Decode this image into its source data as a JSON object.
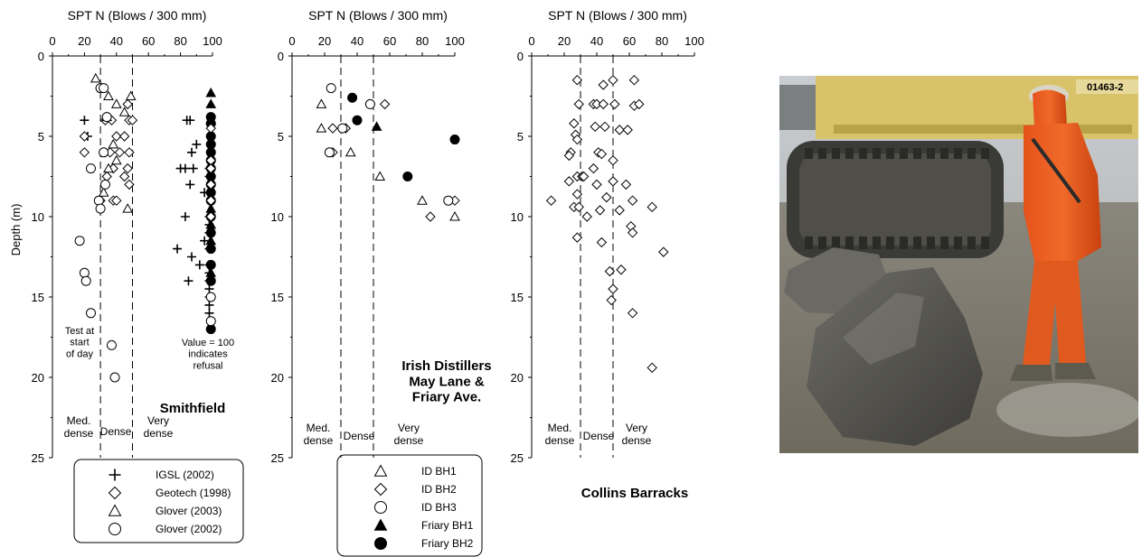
{
  "chart_data": [
    {
      "type": "scatter",
      "title": "Smithfield",
      "xlabel": "SPT N (Blows / 300 mm)",
      "ylabel": "Depth (m)",
      "xlim": [
        0,
        100
      ],
      "ylim": [
        0,
        25
      ],
      "xticks": [
        "0",
        "20",
        "40",
        "60",
        "80",
        "100"
      ],
      "yticks": [
        "0",
        "5",
        "10",
        "15",
        "20",
        "25"
      ],
      "axis_orientation": "x-top, y-inverted",
      "zone_lines_x": [
        30,
        50
      ],
      "zone_labels": [
        "Med.\ndense",
        "Dense",
        "Very\ndense"
      ],
      "annotations": [
        "Test at\nstart\nof day",
        "Value = 100\nindicates\nrefusal"
      ],
      "legend_position": "bottom",
      "series": [
        {
          "name": "IGSL (2002)",
          "marker": "plus",
          "points": [
            [
              20,
              4
            ],
            [
              22,
              5
            ],
            [
              84,
              4
            ],
            [
              86,
              4
            ],
            [
              90,
              5.5
            ],
            [
              87,
              6
            ],
            [
              83,
              7
            ],
            [
              80,
              7
            ],
            [
              88,
              7
            ],
            [
              98,
              7
            ],
            [
              98,
              7.5
            ],
            [
              86,
              8
            ],
            [
              95,
              8.5
            ],
            [
              98,
              8.5
            ],
            [
              83,
              10
            ],
            [
              98,
              10
            ],
            [
              98,
              10.5
            ],
            [
              98,
              11
            ],
            [
              95,
              11.5
            ],
            [
              78,
              12
            ],
            [
              98,
              12
            ],
            [
              87,
              12.5
            ],
            [
              92,
              13
            ],
            [
              98,
              13
            ],
            [
              98,
              13.5
            ],
            [
              98,
              14
            ],
            [
              85,
              14
            ],
            [
              98,
              14.5
            ],
            [
              98,
              15
            ],
            [
              98,
              15.5
            ],
            [
              98,
              16
            ]
          ]
        },
        {
          "name": "Geotech (1998)",
          "marker": "diamond",
          "points": [
            [
              30,
              2
            ],
            [
              47,
              3
            ],
            [
              33,
              4
            ],
            [
              37,
              4
            ],
            [
              48,
              4
            ],
            [
              50,
              4
            ],
            [
              20,
              5
            ],
            [
              40,
              5
            ],
            [
              45,
              5
            ],
            [
              20,
              6
            ],
            [
              36,
              6
            ],
            [
              42,
              6
            ],
            [
              48,
              6
            ],
            [
              38,
              7
            ],
            [
              47,
              7
            ],
            [
              34,
              7.5
            ],
            [
              45,
              7.5
            ],
            [
              48,
              8
            ],
            [
              38,
              9
            ],
            [
              40,
              9
            ],
            [
              30,
              9
            ]
          ]
        },
        {
          "name": "Glover (2003)",
          "marker": "triangle",
          "points": [
            [
              27,
              1.4
            ],
            [
              31,
              2
            ],
            [
              35,
              2.5
            ],
            [
              49,
              2.5
            ],
            [
              40,
              3
            ],
            [
              45,
              3.5
            ],
            [
              34,
              3.8
            ],
            [
              38,
              5.5
            ],
            [
              40,
              6.5
            ],
            [
              35,
              7
            ],
            [
              32,
              8.5
            ],
            [
              47,
              9.5
            ]
          ]
        },
        {
          "name": "Glover (2002)",
          "marker": "circle",
          "points": [
            [
              30,
              2
            ],
            [
              32,
              2
            ],
            [
              34,
              3.8
            ],
            [
              24,
              7
            ],
            [
              32,
              6
            ],
            [
              33,
              8
            ],
            [
              29,
              9
            ],
            [
              30,
              9.5
            ],
            [
              17,
              11.5
            ],
            [
              20,
              13.5
            ],
            [
              21,
              14
            ],
            [
              24,
              16
            ],
            [
              37,
              18
            ],
            [
              39,
              20
            ]
          ]
        },
        {
          "name": "",
          "marker": "filled-circle",
          "points": [
            [
              99,
              3.8
            ],
            [
              99,
              4.2
            ],
            [
              99,
              5
            ],
            [
              99,
              5.5
            ],
            [
              99,
              6
            ],
            [
              99,
              6.5
            ],
            [
              99,
              7
            ],
            [
              99,
              7.5
            ],
            [
              99,
              8
            ],
            [
              99,
              8.5
            ],
            [
              99,
              9
            ],
            [
              99,
              10
            ],
            [
              99,
              11
            ],
            [
              99,
              12
            ],
            [
              99,
              13
            ],
            [
              99,
              14
            ],
            [
              99,
              17
            ]
          ]
        },
        {
          "name": "",
          "marker": "filled-triangle",
          "points": [
            [
              99,
              2.3
            ],
            [
              99,
              3
            ],
            [
              99,
              4
            ],
            [
              99,
              9.5
            ],
            [
              99,
              10.5
            ],
            [
              99,
              11.5
            ],
            [
              99,
              13.5
            ]
          ]
        },
        {
          "name": "",
          "marker": "diamond",
          "points": [
            [
              99,
              4.5
            ],
            [
              99,
              6.5
            ],
            [
              99,
              7
            ],
            [
              99,
              8
            ],
            [
              99,
              9
            ],
            [
              99,
              10
            ]
          ]
        },
        {
          "name": "",
          "marker": "circle",
          "points": [
            [
              99,
              15
            ],
            [
              99,
              16.5
            ]
          ]
        }
      ]
    },
    {
      "type": "scatter",
      "title": "Irish Distillers\nMay Lane &\nFriary Ave.",
      "xlabel": "SPT N (Blows / 300 mm)",
      "ylabel": "",
      "xlim": [
        0,
        100
      ],
      "ylim": [
        0,
        25
      ],
      "xticks": [
        "0",
        "20",
        "40",
        "60",
        "80",
        "100"
      ],
      "yticks": [
        "0",
        "5",
        "10",
        "15",
        "20",
        "25"
      ],
      "zone_lines_x": [
        30,
        50
      ],
      "zone_labels": [
        "Med.\ndense",
        "Dense",
        "Very\ndense"
      ],
      "legend_position": "bottom",
      "series": [
        {
          "name": "ID BH1",
          "marker": "triangle",
          "points": [
            [
              18,
              3
            ],
            [
              18,
              4.5
            ],
            [
              36,
              6
            ],
            [
              54,
              7.5
            ],
            [
              80,
              9
            ],
            [
              100,
              10
            ]
          ]
        },
        {
          "name": "ID BH2",
          "marker": "diamond",
          "points": [
            [
              57,
              3
            ],
            [
              48,
              3
            ],
            [
              25,
              4.5
            ],
            [
              33,
              4.5
            ],
            [
              25,
              6
            ],
            [
              100,
              9
            ],
            [
              85,
              10
            ]
          ]
        },
        {
          "name": "ID BH3",
          "marker": "circle",
          "points": [
            [
              24,
              2
            ],
            [
              48,
              3
            ],
            [
              31,
              4.5
            ],
            [
              23,
              6
            ],
            [
              96,
              9
            ]
          ]
        },
        {
          "name": "Friary BH1",
          "marker": "filled-triangle",
          "points": [
            [
              52,
              4.4
            ]
          ]
        },
        {
          "name": "Friary BH2",
          "marker": "filled-circle",
          "points": [
            [
              37,
              2.6
            ],
            [
              40,
              4
            ],
            [
              100,
              5.2
            ],
            [
              71,
              7.5
            ]
          ]
        }
      ]
    },
    {
      "type": "scatter",
      "title": "Collins Barracks",
      "xlabel": "SPT N (Blows / 300 mm)",
      "ylabel": "",
      "xlim": [
        0,
        100
      ],
      "ylim": [
        0,
        25
      ],
      "xticks": [
        "0",
        "20",
        "40",
        "60",
        "80",
        "100"
      ],
      "yticks": [
        "0",
        "5",
        "10",
        "15",
        "20",
        "25"
      ],
      "zone_lines_x": [
        30,
        50
      ],
      "zone_labels": [
        "Med.\ndense",
        "Dense",
        "Very\ndense"
      ],
      "series": [
        {
          "name": "",
          "marker": "diamond",
          "points": [
            [
              28,
              1.5
            ],
            [
              44,
              1.8
            ],
            [
              50,
              1.5
            ],
            [
              63,
              1.5
            ],
            [
              29,
              3
            ],
            [
              38,
              3
            ],
            [
              40,
              3
            ],
            [
              44,
              3
            ],
            [
              51,
              3
            ],
            [
              63,
              3.1
            ],
            [
              66,
              3
            ],
            [
              26,
              4.2
            ],
            [
              39,
              4.4
            ],
            [
              45,
              4.4
            ],
            [
              54,
              4.6
            ],
            [
              59,
              4.6
            ],
            [
              27,
              4.9
            ],
            [
              28,
              5.2
            ],
            [
              24,
              6
            ],
            [
              23,
              6.2
            ],
            [
              41,
              6
            ],
            [
              43,
              6.1
            ],
            [
              50,
              6.5
            ],
            [
              38,
              7
            ],
            [
              28,
              7.5
            ],
            [
              31,
              7.5
            ],
            [
              32,
              7.5
            ],
            [
              23,
              7.8
            ],
            [
              40,
              8
            ],
            [
              50,
              7.8
            ],
            [
              58,
              8
            ],
            [
              28,
              8.6
            ],
            [
              46,
              8.8
            ],
            [
              12,
              9
            ],
            [
              62,
              9
            ],
            [
              26,
              9.4
            ],
            [
              29,
              9.4
            ],
            [
              42,
              9.6
            ],
            [
              54,
              9.6
            ],
            [
              74,
              9.4
            ],
            [
              34,
              10
            ],
            [
              61,
              10.6
            ],
            [
              62,
              11
            ],
            [
              28,
              11.3
            ],
            [
              43,
              11.6
            ],
            [
              81,
              12.2
            ],
            [
              48,
              13.4
            ],
            [
              55,
              13.3
            ],
            [
              50,
              14.5
            ],
            [
              49,
              15.2
            ],
            [
              62,
              16
            ],
            [
              74,
              19.4
            ]
          ]
        }
      ]
    }
  ],
  "photo": {
    "description_icons": [
      "excavator-crawler-track",
      "worker-in-orange-rainsuit",
      "boulder"
    ],
    "plate_text": "01463-2"
  }
}
